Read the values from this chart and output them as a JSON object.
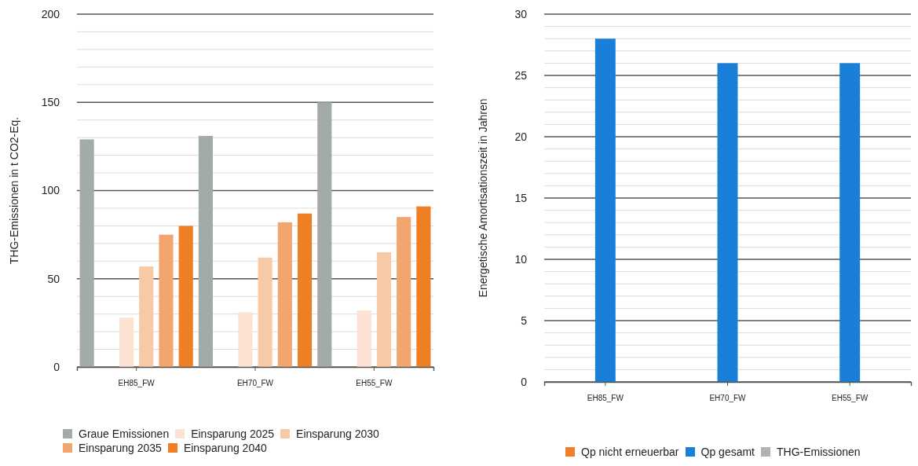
{
  "chart_data": [
    {
      "type": "bar",
      "categories": [
        "EH85_FW",
        "EH70_FW",
        "EH55_FW"
      ],
      "ylabel": "THG-Emissionen in t CO2-Eq.",
      "ylim": [
        0,
        200
      ],
      "yticks": [
        0,
        {
          "value": 10,
          "label": null
        },
        {
          "value": 20,
          "label": null
        },
        {
          "value": 30,
          "label": null
        },
        {
          "value": 40,
          "label": null
        },
        50,
        {
          "value": 60,
          "label": null
        },
        {
          "value": 70,
          "label": null
        },
        {
          "value": 80,
          "label": null
        },
        {
          "value": 90,
          "label": null
        },
        100,
        {
          "value": 110,
          "label": null
        },
        {
          "value": 120,
          "label": null
        },
        {
          "value": 130,
          "label": null
        },
        {
          "value": 140,
          "label": null
        },
        150,
        {
          "value": 160,
          "label": null
        },
        {
          "value": 170,
          "label": null
        },
        {
          "value": 180,
          "label": null
        },
        {
          "value": 190,
          "label": null
        },
        200
      ],
      "grid": true,
      "legend": "bottom",
      "series": [
        {
          "name": "Graue Emissionen",
          "color": "#a2aba8",
          "values": [
            129,
            131,
            150
          ]
        },
        {
          "name": "Einsparung 2025",
          "color": "#fbe2d2",
          "values": [
            28,
            31,
            32
          ]
        },
        {
          "name": "Einsparung 2030",
          "color": "#f7c9a5",
          "values": [
            57,
            62,
            65
          ]
        },
        {
          "name": "Einsparung 2035",
          "color": "#f2a56f",
          "values": [
            75,
            82,
            85
          ]
        },
        {
          "name": "Einsparung 2040",
          "color": "#ee7f24",
          "values": [
            80,
            87,
            91
          ]
        }
      ]
    },
    {
      "type": "bar",
      "categories": [
        "EH85_FW",
        "EH70_FW",
        "EH55_FW"
      ],
      "ylabel": "Energetische Amortisationszeit in Jahren",
      "ylim": [
        0,
        30
      ],
      "yticks": [
        0,
        {
          "value": 1,
          "label": null
        },
        {
          "value": 2,
          "label": null
        },
        {
          "value": 3,
          "label": null
        },
        {
          "value": 4,
          "label": null
        },
        5,
        {
          "value": 6,
          "label": null
        },
        {
          "value": 7,
          "label": null
        },
        {
          "value": 8,
          "label": null
        },
        {
          "value": 9,
          "label": null
        },
        10,
        {
          "value": 11,
          "label": null
        },
        {
          "value": 12,
          "label": null
        },
        {
          "value": 13,
          "label": null
        },
        {
          "value": 14,
          "label": null
        },
        15,
        {
          "value": 16,
          "label": null
        },
        {
          "value": 17,
          "label": null
        },
        {
          "value": 18,
          "label": null
        },
        {
          "value": 19,
          "label": null
        },
        20,
        {
          "value": 21,
          "label": null
        },
        {
          "value": 22,
          "label": null
        },
        {
          "value": 23,
          "label": null
        },
        {
          "value": 24,
          "label": null
        },
        25,
        {
          "value": 26,
          "label": null
        },
        {
          "value": 27,
          "label": null
        },
        {
          "value": 28,
          "label": null
        },
        {
          "value": 29,
          "label": null
        },
        30
      ],
      "grid": true,
      "legend": "bottom",
      "series": [
        {
          "name": "Qp nicht erneuerbar",
          "color": "#f07f2b",
          "values": [
            null,
            null,
            null
          ]
        },
        {
          "name": "Qp gesamt",
          "color": "#1a7fd8",
          "values": [
            28,
            26,
            26
          ]
        },
        {
          "name": "THG-Emissionen",
          "color": "#b0b3b2",
          "values": [
            null,
            null,
            null
          ]
        }
      ]
    }
  ]
}
